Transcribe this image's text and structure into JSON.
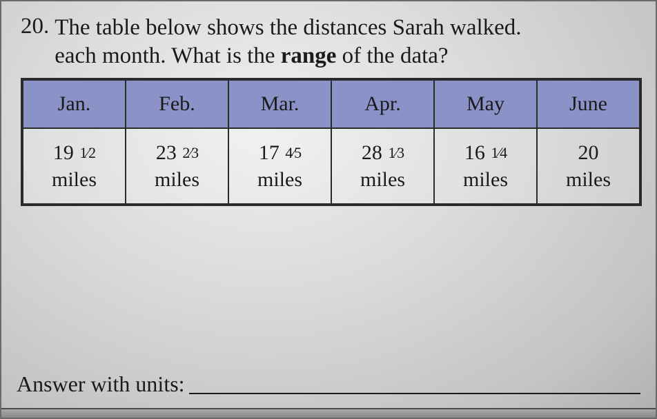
{
  "question": {
    "number": "20.",
    "text_line1": "The table below shows the distances Sarah walked.",
    "text_line2_pre": "each month. What is the ",
    "text_line2_bold": "range",
    "text_line2_post": " of the data?"
  },
  "table": {
    "header_bg": "#8a92c8",
    "border_color": "#2a2a2a",
    "columns": [
      "Jan.",
      "Feb.",
      "Mar.",
      "Apr.",
      "May",
      "June"
    ],
    "rows": [
      [
        {
          "whole": "19",
          "num": "1",
          "den": "2",
          "unit": "miles"
        },
        {
          "whole": "23",
          "num": "2",
          "den": "3",
          "unit": "miles"
        },
        {
          "whole": "17",
          "num": "4",
          "den": "5",
          "unit": "miles"
        },
        {
          "whole": "28",
          "num": "1",
          "den": "3",
          "unit": "miles"
        },
        {
          "whole": "16",
          "num": "1",
          "den": "4",
          "unit": "miles"
        },
        {
          "whole": "20",
          "num": "",
          "den": "",
          "unit": "miles"
        }
      ]
    ]
  },
  "answer": {
    "label": "Answer with units:"
  },
  "styling": {
    "page_bg": "#d9dbdc",
    "text_color": "#1a1a1a",
    "question_fontsize": 33,
    "table_fontsize": 30,
    "fraction_fontsize": 22,
    "answer_fontsize": 32
  }
}
